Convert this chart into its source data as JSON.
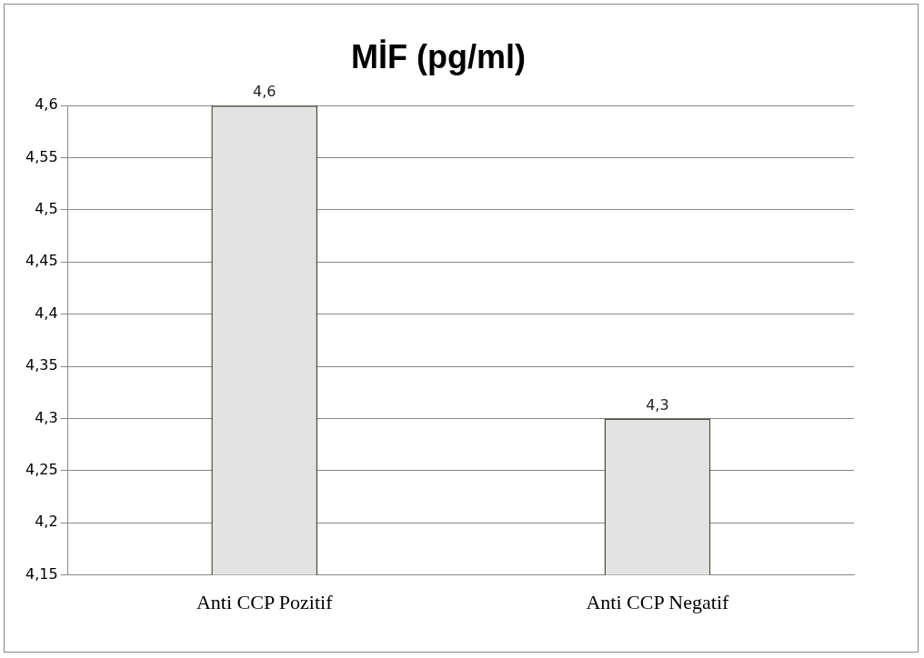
{
  "chart_data": {
    "type": "bar",
    "title": "MİF (pg/ml)",
    "categories": [
      "Anti CCP Pozitif",
      "Anti CCP Negatif"
    ],
    "values": [
      4.6,
      4.3
    ],
    "value_labels": [
      "4,6",
      "4,3"
    ],
    "color": "#e3e3e3",
    "ylim": [
      4.15,
      4.6
    ],
    "yticks": [
      {
        "value": 4.15,
        "label": "4,15"
      },
      {
        "value": 4.2,
        "label": "4,2"
      },
      {
        "value": 4.25,
        "label": "4,25"
      },
      {
        "value": 4.3,
        "label": "4,3"
      },
      {
        "value": 4.35,
        "label": "4,35"
      },
      {
        "value": 4.4,
        "label": "4,4"
      },
      {
        "value": 4.45,
        "label": "4,45"
      },
      {
        "value": 4.5,
        "label": "4,5"
      },
      {
        "value": 4.55,
        "label": "4,55"
      },
      {
        "value": 4.6,
        "label": "4,6"
      }
    ],
    "grid": "y"
  }
}
